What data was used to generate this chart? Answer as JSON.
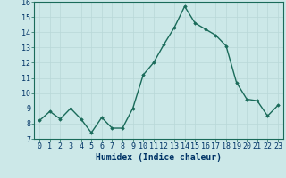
{
  "x": [
    0,
    1,
    2,
    3,
    4,
    5,
    6,
    7,
    8,
    9,
    10,
    11,
    12,
    13,
    14,
    15,
    16,
    17,
    18,
    19,
    20,
    21,
    22,
    23
  ],
  "y": [
    8.2,
    8.8,
    8.3,
    9.0,
    8.3,
    7.4,
    8.4,
    7.7,
    7.7,
    9.0,
    11.2,
    12.0,
    13.2,
    14.3,
    15.7,
    14.6,
    14.2,
    13.8,
    13.1,
    10.7,
    9.6,
    9.5,
    8.5,
    9.2
  ],
  "xlabel": "Humidex (Indice chaleur)",
  "ylim": [
    7,
    16
  ],
  "yticks": [
    7,
    8,
    9,
    10,
    11,
    12,
    13,
    14,
    15,
    16
  ],
  "xticks": [
    0,
    1,
    2,
    3,
    4,
    5,
    6,
    7,
    8,
    9,
    10,
    11,
    12,
    13,
    14,
    15,
    16,
    17,
    18,
    19,
    20,
    21,
    22,
    23
  ],
  "line_color": "#1a6b5a",
  "marker": "D",
  "marker_size": 1.8,
  "bg_color": "#cce8e8",
  "grid_color": "#b8d8d8",
  "axis_bg": "#cce8e8",
  "xlabel_color": "#003366",
  "tick_label_color": "#003366",
  "xlabel_fontsize": 7,
  "tick_fontsize": 6,
  "line_width": 1.0
}
